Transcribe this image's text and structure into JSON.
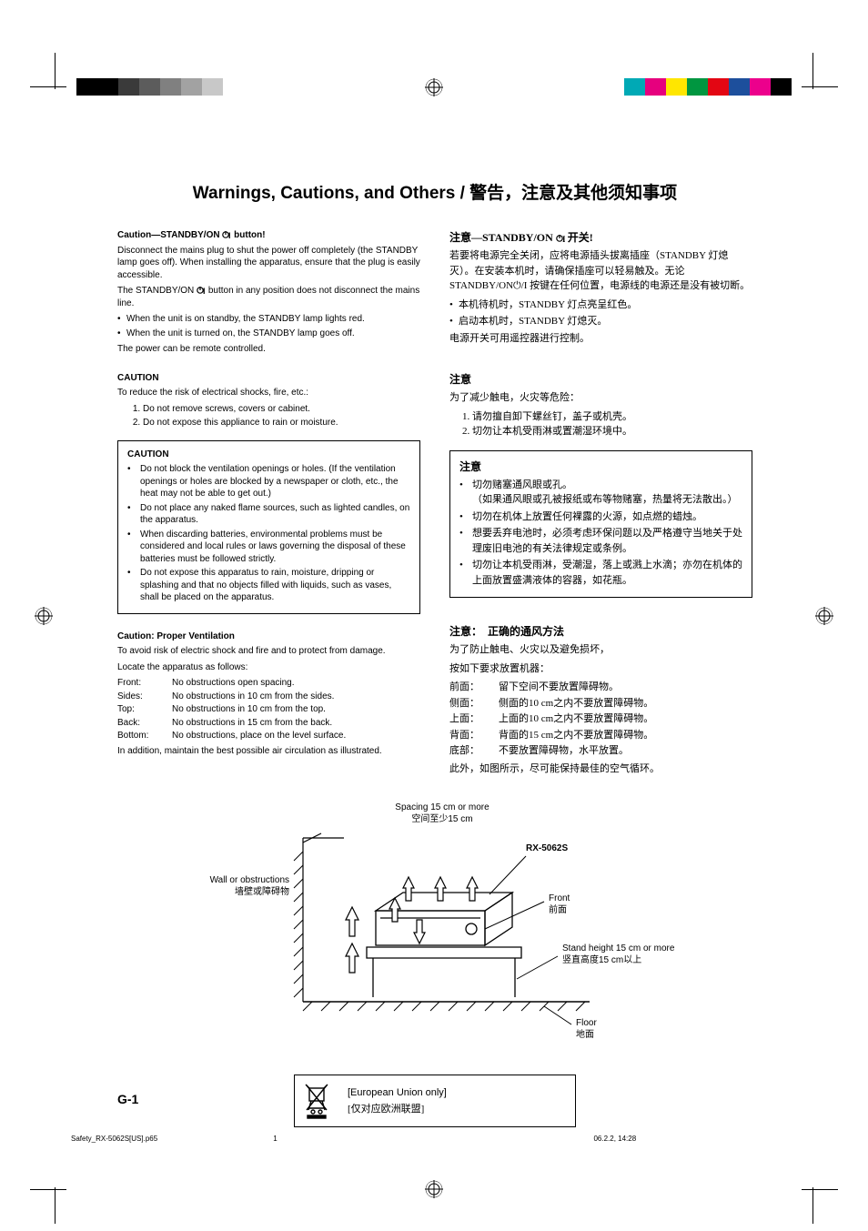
{
  "colorbars": {
    "left_colors": [
      "#000000",
      "#000000",
      "#3a3a3a",
      "#5c5c5c",
      "#808080",
      "#a2a2a2",
      "#c8c8c8"
    ],
    "right_colors": [
      "#00a9b5",
      "#e6007e",
      "#ffe600",
      "#009640",
      "#e30613",
      "#1d4f9c",
      "#ec008c",
      "#000000"
    ],
    "swatch_w": 23,
    "swatch_h": 19
  },
  "title": "Warnings, Cautions, and Others / 警告，注意及其他须知事项",
  "left": {
    "h1_pre": "Caution—STANDBY/ON ",
    "h1_post": " button!",
    "p1": "Disconnect the mains plug to shut the power off completely (the STANDBY lamp goes off). When installing the apparatus, ensure that the plug is easily accessible.",
    "p2_pre": "The STANDBY/ON ",
    "p2_post": " button in any position does not disconnect the mains line.",
    "b1": "When the unit is on standby, the STANDBY lamp lights red.",
    "b2": "When the unit is turned on, the STANDBY lamp goes off.",
    "p3": "The power can be remote controlled.",
    "caution_h": "CAUTION",
    "caution_lead": "To reduce the risk of electrical shocks, fire, etc.:",
    "caution1": "Do not remove screws, covers or cabinet.",
    "caution2": "Do not expose this appliance to rain or moisture.",
    "box_h": "CAUTION",
    "box1": "Do not block the ventilation openings or holes. (If the ventilation openings or holes are blocked by a newspaper or cloth, etc., the heat may not be able to get out.)",
    "box2": "Do not place any naked flame sources, such as lighted candles, on the apparatus.",
    "box3": "When discarding batteries, environmental problems must be considered and local rules or laws governing the disposal of these batteries must be followed strictly.",
    "box4": "Do not expose this apparatus to rain, moisture, dripping or splashing and that no objects filled with liquids, such as vases, shall be placed on the apparatus.",
    "vent_h": "Caution: Proper Ventilation",
    "vent_lead1": "To avoid risk of electric shock and fire and to protect from damage.",
    "vent_lead2": "Locate the apparatus as follows:",
    "vent_rows": [
      {
        "k": "Front:",
        "v": "No obstructions open spacing."
      },
      {
        "k": "Sides:",
        "v": "No obstructions in 10 cm from the sides."
      },
      {
        "k": "Top:",
        "v": "No obstructions in 10 cm from the top."
      },
      {
        "k": "Back:",
        "v": "No obstructions in 15 cm from the back."
      },
      {
        "k": "Bottom:",
        "v": "No obstructions, place on the level surface."
      }
    ],
    "vent_tail": "In addition, maintain the best possible air circulation as illustrated."
  },
  "right": {
    "h1_pre": "注意—STANDBY/ON ",
    "h1_post": " 开关!",
    "p1": "若要将电源完全关闭，应将电源插头拔离插座（STANDBY 灯熄灭）。在安装本机时，请确保插座可以轻易触及。无论 STANDBY/ON⏻/I 按键在任何位置，电源线的电源还是没有被切断。",
    "b1": "本机待机时，STANDBY 灯点亮呈红色。",
    "b2": "启动本机时，STANDBY 灯熄灭。",
    "p2": "电源开关可用遥控器进行控制。",
    "cau_h": "注意",
    "cau_lead": "为了减少触电，火灾等危险：",
    "cau1": "请勿擅自卸下螺丝钉，盖子或机壳。",
    "cau2": "切勿让本机受雨淋或置潮湿环境中。",
    "box_h": "注意",
    "box1": "切勿赌塞通风眼或孔。",
    "box1b": "（如果通风眼或孔被报纸或布等物赌塞，热量将无法散出。）",
    "box2": "切勿在机体上放置任何裸露的火源，如点燃的蜡烛。",
    "box3": "想要丢弃电池时，必须考虑环保问题以及严格遵守当地关于处理废旧电池的有关法律规定或条例。",
    "box4": "切勿让本机受雨淋，受潮湿，落上或溅上水滴；亦勿在机体的上面放置盛满液体的容器，如花瓶。",
    "vent_h": "注意：　正确的通风方法",
    "vent_lead1": "为了防止触电、火灾以及避免损坏，",
    "vent_lead2": "按如下要求放置机器：",
    "vent_rows": [
      {
        "k": "前面：",
        "v": "留下空间不要放置障碍物。"
      },
      {
        "k": "侧面：",
        "v": "侧面的10 cm之内不要放置障碍物。"
      },
      {
        "k": "上面：",
        "v": "上面的10 cm之内不要放置障碍物。"
      },
      {
        "k": "背面：",
        "v": "背面的15 cm之内不要放置障碍物。"
      },
      {
        "k": "底部：",
        "v": "不要放置障碍物，水平放置。"
      }
    ],
    "vent_tail": "此外，如图所示，尽可能保持最佳的空气循环。"
  },
  "diagram": {
    "spacing_en": "Spacing 15 cm or more",
    "spacing_cn": "空间至少15 cm",
    "model": "RX-5062S",
    "wall_en": "Wall or obstructions",
    "wall_cn": "墙壁或障碍物",
    "front_en": "Front",
    "front_cn": "前面",
    "stand_en": "Stand height 15 cm or more",
    "stand_cn": "竖直高度15 cm以上",
    "floor_en": "Floor",
    "floor_cn": "地面"
  },
  "eu": {
    "en": "[European Union only]",
    "cn": "[仅对应欧洲联盟]"
  },
  "pagenum": "G-1",
  "footer": {
    "file": "Safety_RX-5062S[US].p65",
    "page": "1",
    "datetime": "06.2.2, 14:28"
  }
}
